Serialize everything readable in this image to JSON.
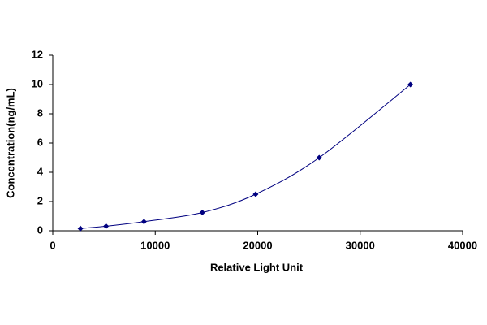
{
  "chart_data": {
    "type": "scatter",
    "xlabel": "Relative Light Unit",
    "ylabel": "Concentration(ng/mL)",
    "x": [
      2700,
      5200,
      8900,
      14600,
      19800,
      26000,
      34900
    ],
    "values": [
      0.156,
      0.312,
      0.625,
      1.25,
      2.5,
      5,
      10
    ],
    "color": "#000080",
    "trendline": true,
    "xlim": [
      0,
      40000
    ],
    "xticks": [
      0,
      10000,
      20000,
      30000,
      40000
    ],
    "ylim": [
      0,
      12
    ],
    "yticks": [
      0,
      2,
      4,
      6,
      8,
      10,
      12
    ],
    "grid": false
  }
}
